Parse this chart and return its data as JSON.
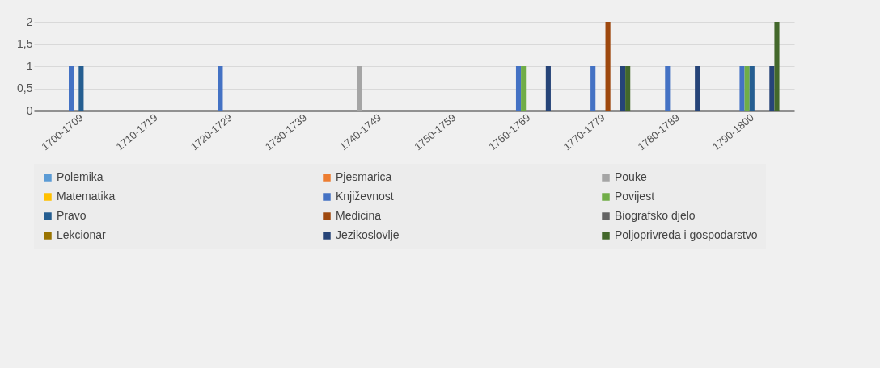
{
  "chart_data": {
    "type": "bar",
    "categories": [
      "1700-1709",
      "1710-1719",
      "1720-1729",
      "1730-1739",
      "1740-1749",
      "1750-1759",
      "1760-1769",
      "1770-1779",
      "1780-1789",
      "1790-1800"
    ],
    "series": [
      {
        "name": "Polemika",
        "color": "#5b9bd5",
        "values": [
          0,
          0,
          0,
          0,
          0,
          0,
          0,
          0,
          0,
          0
        ]
      },
      {
        "name": "Pjesmarica",
        "color": "#ed7d31",
        "values": [
          0,
          0,
          0,
          0,
          0,
          0,
          0,
          0,
          0,
          0
        ]
      },
      {
        "name": "Pouke",
        "color": "#a5a5a5",
        "values": [
          0,
          0,
          0,
          0,
          1,
          0,
          0,
          0,
          0,
          0
        ]
      },
      {
        "name": "Matematika",
        "color": "#ffc000",
        "values": [
          0,
          0,
          0,
          0,
          0,
          0,
          0,
          0,
          0,
          0
        ]
      },
      {
        "name": "Književnost",
        "color": "#4472c4",
        "values": [
          1,
          0,
          1,
          0,
          0,
          0,
          1,
          1,
          1,
          1
        ]
      },
      {
        "name": "Povijest",
        "color": "#70ad47",
        "values": [
          0,
          0,
          0,
          0,
          0,
          0,
          1,
          0,
          0,
          1
        ]
      },
      {
        "name": "Pravo",
        "color": "#255e91",
        "values": [
          1,
          0,
          0,
          0,
          0,
          0,
          0,
          0,
          0,
          1
        ]
      },
      {
        "name": "Medicina",
        "color": "#9e480e",
        "values": [
          0,
          0,
          0,
          0,
          0,
          0,
          0,
          2,
          0,
          0
        ]
      },
      {
        "name": "Biografsko djelo",
        "color": "#636363",
        "values": [
          0,
          0,
          0,
          0,
          0,
          0,
          0,
          0,
          0,
          0
        ]
      },
      {
        "name": "Lekcionar",
        "color": "#997300",
        "values": [
          0,
          0,
          0,
          0,
          0,
          0,
          0,
          0,
          0,
          0
        ]
      },
      {
        "name": "Jezikoslovlje",
        "color": "#264478",
        "values": [
          0,
          0,
          0,
          0,
          0,
          0,
          1,
          1,
          1,
          1
        ]
      },
      {
        "name": "Poljoprivreda i gospodarstvo",
        "color": "#43682b",
        "values": [
          0,
          0,
          0,
          0,
          0,
          0,
          0,
          1,
          0,
          2
        ]
      }
    ],
    "ylim": [
      0,
      2
    ],
    "yticks": [
      0,
      {
        "value": 0.5,
        "label": "0,5"
      },
      1,
      {
        "value": 1.5,
        "label": "1,5"
      },
      2
    ],
    "grid": "y",
    "legend": "bottom"
  }
}
